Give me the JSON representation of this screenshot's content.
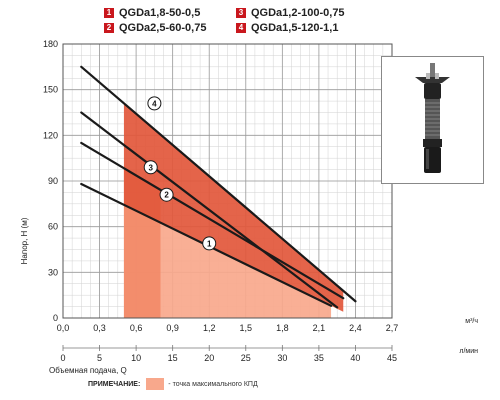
{
  "legend": [
    {
      "num": "1",
      "label": "QGDa1,8-50-0,5",
      "color": "#c9171d"
    },
    {
      "num": "2",
      "label": "QGDa2,5-60-0,75",
      "color": "#c9171d"
    },
    {
      "num": "3",
      "label": "QGDa1,2-100-0,75",
      "color": "#c9171d"
    },
    {
      "num": "4",
      "label": "QGDa1,5-120-1,1",
      "color": "#c9171d"
    }
  ],
  "note": {
    "label": "ПРИМЕЧАНИЕ:",
    "text": "- точка максимального КПД",
    "swatch_color": "#f8a88c"
  },
  "product": {
    "image": "submersible-pump-photo"
  },
  "chart_data": {
    "type": "line",
    "ylabel": "Напор, H (м)",
    "xlabel": "Объемная подача, Q",
    "x_unit_top": "м³/ч",
    "x_unit_bottom": "л/мин",
    "ylim": [
      0,
      180
    ],
    "xlim": [
      0,
      2.7
    ],
    "y_ticks": [
      0,
      30,
      60,
      90,
      120,
      150,
      180
    ],
    "x_ticks_top": [
      "0,0",
      "0,3",
      "0,6",
      "0,9",
      "1,2",
      "1,5",
      "1,8",
      "2,1",
      "2,4",
      "2,7"
    ],
    "x_ticks_top_values": [
      0,
      0.3,
      0.6,
      0.9,
      1.2,
      1.5,
      1.8,
      2.1,
      2.4,
      2.7
    ],
    "x_ticks_bottom": [
      "0",
      "5",
      "10",
      "15",
      "20",
      "25",
      "30",
      "35",
      "40",
      "45"
    ],
    "x_ticks_bottom_values": [
      0,
      0.3,
      0.6,
      0.9,
      1.2,
      1.5,
      1.8,
      2.1,
      2.4,
      2.7
    ],
    "grid": true,
    "series": [
      {
        "name": "1",
        "x": [
          0.15,
          2.2
        ],
        "y": [
          88,
          8
        ],
        "label_at": [
          1.2,
          49
        ]
      },
      {
        "name": "2",
        "x": [
          0.15,
          2.3
        ],
        "y": [
          115,
          13
        ],
        "label_at": [
          0.85,
          81
        ]
      },
      {
        "name": "3",
        "x": [
          0.15,
          2.25
        ],
        "y": [
          135,
          7
        ],
        "label_at": [
          0.72,
          99
        ]
      },
      {
        "name": "4",
        "x": [
          0.15,
          2.4
        ],
        "y": [
          165,
          11
        ],
        "label_at": [
          0.75,
          141
        ]
      }
    ],
    "efficiency_zones": [
      {
        "color": "#f8a88c",
        "x": [
          0.5,
          2.2
        ],
        "y_bottom": 0,
        "curve": "1"
      },
      {
        "color": "#f28a68",
        "x": [
          0.5,
          0.8
        ],
        "y_bottom": 0,
        "curve": "2"
      },
      {
        "color": "#e2573b",
        "x": [
          0.5,
          2.3
        ],
        "y_bottom": 0,
        "curve": "4",
        "lower_curve": "1"
      }
    ]
  }
}
